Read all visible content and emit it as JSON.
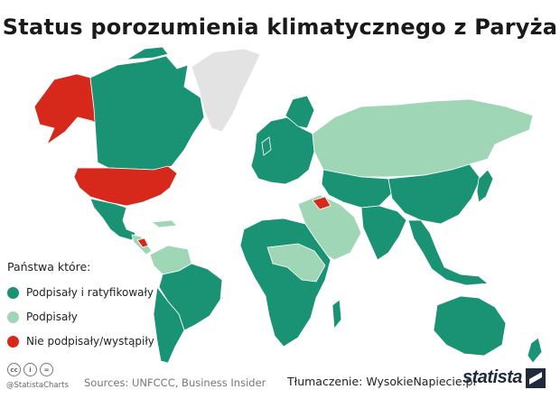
{
  "title": "Status porozumienia klimatycznego z Paryża",
  "legend": {
    "title": "Państwa które:",
    "items": [
      {
        "label": "Podpisały i ratyfikowały",
        "color": "#1a9374"
      },
      {
        "label": "Podpisały",
        "color": "#9fd6b6"
      },
      {
        "label": "Nie podpisały/wystąpiły",
        "color": "#d7281c"
      }
    ]
  },
  "colors": {
    "ratified": "#1a9374",
    "signed": "#9fd6b6",
    "not_signed": "#d7281c",
    "no_data": "#e3e3e3",
    "borders": "#ffffff"
  },
  "footer": {
    "cc_icons": [
      "cc",
      "i",
      "="
    ],
    "handle": "@StatistaCharts",
    "sources": "Sources: UNFCCC, Business Insider",
    "translation": "Tłumaczenie: WysokieNapiecie.pl",
    "logo": "statista"
  },
  "regions": [
    {
      "name": "Alaska",
      "status": "not_signed"
    },
    {
      "name": "Canada",
      "status": "ratified"
    },
    {
      "name": "Greenland",
      "status": "no_data"
    },
    {
      "name": "United States",
      "status": "not_signed"
    },
    {
      "name": "Mexico",
      "status": "ratified"
    },
    {
      "name": "Nicaragua",
      "status": "not_signed"
    },
    {
      "name": "Central America",
      "status": "signed"
    },
    {
      "name": "Colombia / Venezuela",
      "status": "signed"
    },
    {
      "name": "Brazil",
      "status": "ratified"
    },
    {
      "name": "Argentina / Chile",
      "status": "ratified"
    },
    {
      "name": "Europe",
      "status": "ratified"
    },
    {
      "name": "Russia",
      "status": "signed"
    },
    {
      "name": "Central Asia",
      "status": "ratified"
    },
    {
      "name": "China",
      "status": "ratified"
    },
    {
      "name": "India",
      "status": "ratified"
    },
    {
      "name": "Middle East",
      "status": "signed"
    },
    {
      "name": "Syria",
      "status": "not_signed"
    },
    {
      "name": "Africa",
      "status": "ratified"
    },
    {
      "name": "Sahel / East Africa",
      "status": "signed"
    },
    {
      "name": "Southeast Asia",
      "status": "ratified"
    },
    {
      "name": "Japan",
      "status": "ratified"
    },
    {
      "name": "Australia",
      "status": "ratified"
    },
    {
      "name": "New Zealand",
      "status": "ratified"
    }
  ]
}
